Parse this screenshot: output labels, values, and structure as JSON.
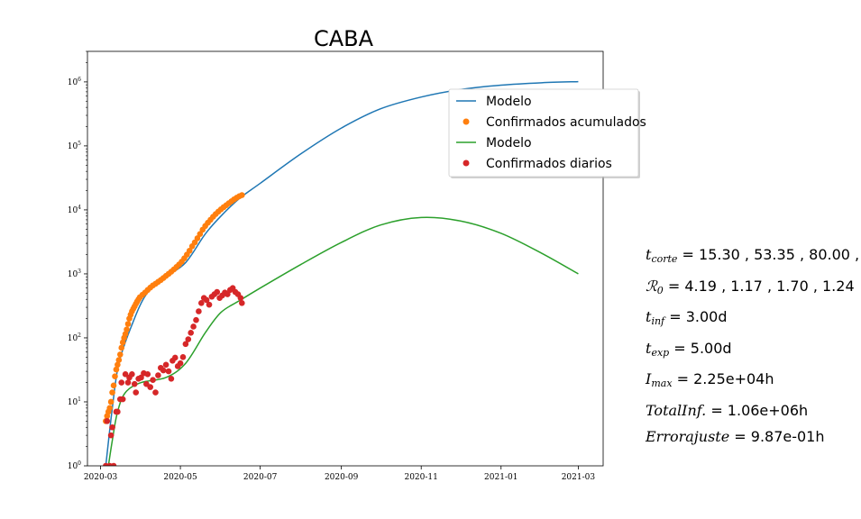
{
  "chart_data": {
    "type": "line",
    "title": "CABA",
    "xlabel": "",
    "ylabel": "",
    "yscale": "log",
    "ylim": [
      1,
      3000000
    ],
    "xlim": [
      "2020-02-20",
      "2021-03-20"
    ],
    "x_ticks": [
      "2020-03",
      "2020-05",
      "2020-07",
      "2020-09",
      "2020-11",
      "2021-01",
      "2021-03"
    ],
    "y_ticks": [
      {
        "value": 1,
        "base": "10",
        "exp": "0"
      },
      {
        "value": 10,
        "base": "10",
        "exp": "1"
      },
      {
        "value": 100,
        "base": "10",
        "exp": "2"
      },
      {
        "value": 1000,
        "base": "10",
        "exp": "3"
      },
      {
        "value": 10000,
        "base": "10",
        "exp": "4"
      },
      {
        "value": 100000,
        "base": "10",
        "exp": "5"
      },
      {
        "value": 1000000,
        "base": "10",
        "exp": "6"
      }
    ],
    "legend_position": "upper-right",
    "series": [
      {
        "name": "Modelo",
        "kind": "line",
        "color": "#1f77b4",
        "x": [
          "2020-03-05",
          "2020-03-10",
          "2020-03-15",
          "2020-03-25",
          "2020-04-05",
          "2020-04-20",
          "2020-05-05",
          "2020-05-20",
          "2020-06-01",
          "2020-06-15",
          "2020-07-01",
          "2020-08-01",
          "2020-09-01",
          "2020-10-01",
          "2020-11-01",
          "2020-12-01",
          "2021-01-01",
          "2021-02-01",
          "2021-03-01"
        ],
        "y": [
          1,
          8,
          40,
          160,
          480,
          900,
          1500,
          4200,
          8000,
          15000,
          26000,
          75000,
          190000,
          380000,
          580000,
          760000,
          890000,
          970000,
          1010000
        ]
      },
      {
        "name": "Confirmados acumulados",
        "kind": "scatter",
        "color": "#ff7f0e",
        "x": [
          "2020-03-05",
          "2020-03-06",
          "2020-03-07",
          "2020-03-08",
          "2020-03-09",
          "2020-03-10",
          "2020-03-11",
          "2020-03-12",
          "2020-03-13",
          "2020-03-14",
          "2020-03-15",
          "2020-03-16",
          "2020-03-17",
          "2020-03-18",
          "2020-03-19",
          "2020-03-20",
          "2020-03-21",
          "2020-03-22",
          "2020-03-23",
          "2020-03-24",
          "2020-03-25",
          "2020-03-26",
          "2020-03-27",
          "2020-03-28",
          "2020-03-29",
          "2020-03-30",
          "2020-03-31",
          "2020-04-02",
          "2020-04-04",
          "2020-04-06",
          "2020-04-08",
          "2020-04-10",
          "2020-04-12",
          "2020-04-14",
          "2020-04-16",
          "2020-04-18",
          "2020-04-20",
          "2020-04-22",
          "2020-04-24",
          "2020-04-26",
          "2020-04-28",
          "2020-04-30",
          "2020-05-02",
          "2020-05-04",
          "2020-05-06",
          "2020-05-08",
          "2020-05-10",
          "2020-05-12",
          "2020-05-14",
          "2020-05-16",
          "2020-05-18",
          "2020-05-20",
          "2020-05-22",
          "2020-05-24",
          "2020-05-26",
          "2020-05-28",
          "2020-05-30",
          "2020-06-01",
          "2020-06-03",
          "2020-06-05",
          "2020-06-07",
          "2020-06-09",
          "2020-06-11",
          "2020-06-13",
          "2020-06-15",
          "2020-06-17"
        ],
        "y": [
          5,
          6,
          7,
          8,
          10,
          14,
          18,
          25,
          32,
          38,
          45,
          55,
          70,
          85,
          100,
          115,
          135,
          165,
          200,
          230,
          260,
          285,
          310,
          340,
          370,
          400,
          430,
          470,
          510,
          560,
          610,
          660,
          700,
          750,
          800,
          860,
          930,
          1000,
          1080,
          1170,
          1280,
          1400,
          1550,
          1750,
          2000,
          2300,
          2700,
          3100,
          3600,
          4200,
          4900,
          5600,
          6300,
          7000,
          7800,
          8600,
          9400,
          10200,
          11000,
          11800,
          12700,
          13600,
          14600,
          15500,
          16300,
          17000
        ]
      },
      {
        "name": "Modelo",
        "kind": "line",
        "color": "#2ca02c",
        "x": [
          "2020-03-07",
          "2020-03-10",
          "2020-03-14",
          "2020-03-20",
          "2020-04-01",
          "2020-04-20",
          "2020-05-05",
          "2020-05-20",
          "2020-06-01",
          "2020-06-15",
          "2020-07-01",
          "2020-08-01",
          "2020-09-01",
          "2020-10-01",
          "2020-11-01",
          "2020-12-01",
          "2021-01-01",
          "2021-02-01",
          "2021-03-01"
        ],
        "y": [
          1,
          2.5,
          7,
          14,
          20,
          24,
          40,
          120,
          250,
          380,
          600,
          1400,
          3100,
          5800,
          7600,
          6700,
          4300,
          2100,
          1000
        ]
      },
      {
        "name": "Confirmados diarios",
        "kind": "scatter",
        "color": "#d62728",
        "x": [
          "2020-03-05",
          "2020-03-06",
          "2020-03-08",
          "2020-03-09",
          "2020-03-10",
          "2020-03-11",
          "2020-03-13",
          "2020-03-14",
          "2020-03-16",
          "2020-03-17",
          "2020-03-18",
          "2020-03-20",
          "2020-03-22",
          "2020-03-23",
          "2020-03-25",
          "2020-03-27",
          "2020-03-28",
          "2020-03-30",
          "2020-04-01",
          "2020-04-03",
          "2020-04-05",
          "2020-04-06",
          "2020-04-08",
          "2020-04-10",
          "2020-04-12",
          "2020-04-14",
          "2020-04-16",
          "2020-04-18",
          "2020-04-20",
          "2020-04-22",
          "2020-04-24",
          "2020-04-25",
          "2020-04-27",
          "2020-04-29",
          "2020-05-01",
          "2020-05-03",
          "2020-05-05",
          "2020-05-07",
          "2020-05-09",
          "2020-05-11",
          "2020-05-13",
          "2020-05-15",
          "2020-05-17",
          "2020-05-19",
          "2020-05-21",
          "2020-05-23",
          "2020-05-25",
          "2020-05-27",
          "2020-05-29",
          "2020-05-31",
          "2020-06-02",
          "2020-06-04",
          "2020-06-06",
          "2020-06-08",
          "2020-06-10",
          "2020-06-12",
          "2020-06-14",
          "2020-06-16",
          "2020-06-17"
        ],
        "y": [
          1,
          5,
          1,
          3,
          4,
          1,
          7,
          7,
          11,
          20,
          11,
          27,
          20,
          24,
          27,
          19,
          14,
          23,
          24,
          28,
          19,
          27,
          17,
          22,
          14,
          26,
          34,
          31,
          38,
          30,
          23,
          44,
          49,
          36,
          40,
          50,
          80,
          95,
          120,
          150,
          190,
          260,
          350,
          420,
          390,
          330,
          440,
          480,
          520,
          420,
          460,
          510,
          480,
          560,
          600,
          520,
          480,
          420,
          350
        ]
      }
    ]
  },
  "params": {
    "t_corte": {
      "sym": "t",
      "sub": "corte",
      "value": "= 15.30 , 53.35 , 80.00 ,"
    },
    "r0": {
      "sym": "ℛ",
      "sub": "0",
      "value": "= 4.19 , 1.17 , 1.70 , 1.24"
    },
    "t_inf": {
      "sym": "t",
      "sub": "inf",
      "value": "= 3.00d"
    },
    "t_exp": {
      "sym": "t",
      "sub": "exp",
      "value": "= 5.00d"
    },
    "i_max": {
      "sym": "I",
      "sub": "max",
      "value": "= 2.25e+04h"
    },
    "total_inf": {
      "sym": "TotalInf.",
      "sub": "",
      "value": "= 1.06e+06h"
    },
    "error": {
      "sym": "Errorajuste",
      "sub": "",
      "value": "= 9.87e-01h"
    }
  }
}
